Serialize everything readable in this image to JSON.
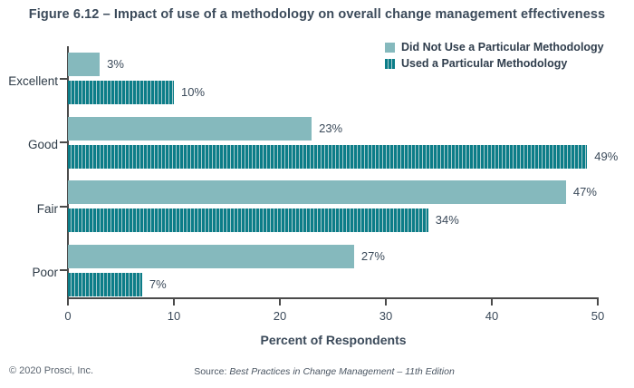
{
  "page": {
    "title": "Figure 6.12 – Impact of use of a methodology on overall change management effectiveness"
  },
  "chart_data": {
    "type": "bar",
    "orientation": "horizontal",
    "title": "Figure 6.12 – Impact of use of a methodology on overall change management effectiveness",
    "categories": [
      "Excellent",
      "Good",
      "Fair",
      "Poor"
    ],
    "series": [
      {
        "name": "Did Not Use a Particular Methodology",
        "values": [
          3,
          23,
          47,
          27
        ],
        "value_labels": [
          "3%",
          "23%",
          "47%",
          "27%"
        ],
        "color": "#85b9bd",
        "pattern": "solid"
      },
      {
        "name": "Used a Particular Methodology",
        "values": [
          10,
          49,
          34,
          7
        ],
        "value_labels": [
          "10%",
          "49%",
          "34%",
          "7%"
        ],
        "color": "#0c7d88",
        "pattern": "vertical-hatch",
        "hatch_line_color": "#a9cbce"
      }
    ],
    "xlabel": "Percent of Respondents",
    "xlim": [
      0,
      50
    ],
    "xticks": [
      "0",
      "10",
      "20",
      "30",
      "40",
      "50"
    ],
    "legend_position": "top-right",
    "grid": false
  },
  "footer": {
    "copyright": "© 2020 Prosci, Inc.",
    "source_prefix": "Source: ",
    "source_title": "Best Practices in Change Management – 11th Edition"
  },
  "colors": {
    "title_text": "#3b4a5a",
    "axis_line": "#4a4a4a",
    "category_text": "#2e3b47",
    "footer_text": "#5b6570"
  }
}
